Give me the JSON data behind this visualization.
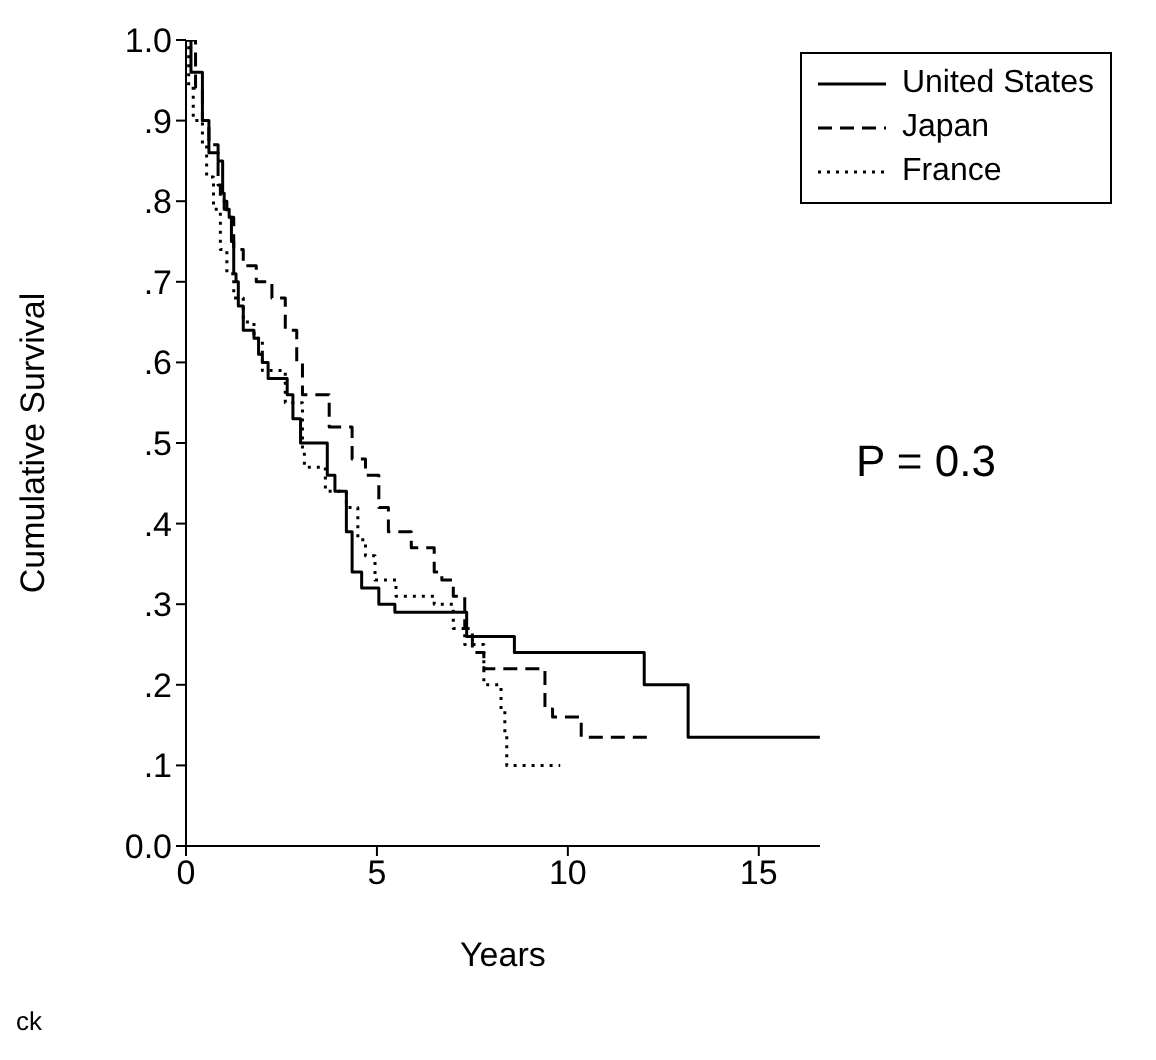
{
  "chart_data": {
    "type": "step",
    "xlabel": "Years",
    "ylabel": "Cumulative Survival",
    "xlim": [
      0,
      16.6
    ],
    "ylim": [
      0,
      1
    ],
    "xticks": [
      0,
      5,
      10,
      15
    ],
    "yticks": [
      {
        "value": 0,
        "label": "0.0"
      },
      {
        "value": 0.1,
        "label": ".1"
      },
      {
        "value": 0.2,
        "label": ".2"
      },
      {
        "value": 0.3,
        "label": ".3"
      },
      {
        "value": 0.4,
        "label": ".4"
      },
      {
        "value": 0.5,
        "label": ".5"
      },
      {
        "value": 0.6,
        "label": ".6"
      },
      {
        "value": 0.7,
        "label": ".7"
      },
      {
        "value": 0.8,
        "label": ".8"
      },
      {
        "value": 0.9,
        "label": ".9"
      },
      {
        "value": 1,
        "label": "1.0"
      }
    ],
    "grid": false,
    "legend": "top right",
    "marker": "none",
    "series": [
      {
        "name": "United States",
        "color": "#000000",
        "line_style": "solid",
        "x": [
          0,
          0.13,
          0.43,
          0.6,
          0.84,
          0.96,
          1.0,
          1.13,
          1.19,
          1.25,
          1.31,
          1.37,
          1.5,
          1.78,
          1.9,
          2.0,
          2.15,
          2.65,
          2.8,
          3.0,
          3.7,
          3.9,
          4.2,
          4.35,
          4.6,
          5.05,
          5.47,
          5.9,
          7.35,
          8.6,
          12.0,
          13.15,
          16.6
        ],
        "values": [
          1,
          0.96,
          0.9,
          0.86,
          0.85,
          0.81,
          0.79,
          0.78,
          0.75,
          0.71,
          0.7,
          0.67,
          0.64,
          0.63,
          0.61,
          0.6,
          0.58,
          0.56,
          0.53,
          0.5,
          0.46,
          0.44,
          0.39,
          0.34,
          0.32,
          0.3,
          0.29,
          0.29,
          0.26,
          0.24,
          0.2,
          0.135,
          0.135
        ]
      },
      {
        "name": "Japan",
        "color": "#000000",
        "line_style": "dashed",
        "x": [
          0,
          0.25,
          0.43,
          0.6,
          0.84,
          0.9,
          1.07,
          1.25,
          1.5,
          1.84,
          2.25,
          2.6,
          2.9,
          3.05,
          3.75,
          4.35,
          4.7,
          5.05,
          5.3,
          5.9,
          6.5,
          6.7,
          7.0,
          7.3,
          7.5,
          7.8,
          9.4,
          9.6,
          10.35,
          12.1
        ],
        "values": [
          1,
          0.94,
          0.9,
          0.87,
          0.82,
          0.8,
          0.78,
          0.74,
          0.72,
          0.7,
          0.68,
          0.64,
          0.6,
          0.56,
          0.52,
          0.48,
          0.46,
          0.42,
          0.39,
          0.37,
          0.34,
          0.33,
          0.31,
          0.27,
          0.24,
          0.22,
          0.17,
          0.16,
          0.135,
          0.135
        ]
      },
      {
        "name": "France",
        "color": "#000000",
        "line_style": "dotted",
        "x": [
          0,
          0.07,
          0.19,
          0.43,
          0.54,
          0.72,
          0.9,
          1.07,
          1.25,
          1.5,
          1.78,
          2.0,
          2.6,
          3.05,
          3.1,
          3.65,
          4.2,
          4.5,
          4.7,
          4.95,
          5.5,
          6.5,
          7.0,
          7.3,
          7.8,
          8.25,
          8.35,
          8.4,
          9.8
        ],
        "values": [
          1,
          0.94,
          0.9,
          0.87,
          0.83,
          0.79,
          0.74,
          0.71,
          0.68,
          0.65,
          0.63,
          0.59,
          0.55,
          0.49,
          0.47,
          0.44,
          0.42,
          0.38,
          0.36,
          0.33,
          0.31,
          0.3,
          0.27,
          0.25,
          0.2,
          0.17,
          0.14,
          0.1,
          0.1
        ]
      }
    ],
    "annotations": [
      "P = 0.3",
      "ck"
    ]
  }
}
